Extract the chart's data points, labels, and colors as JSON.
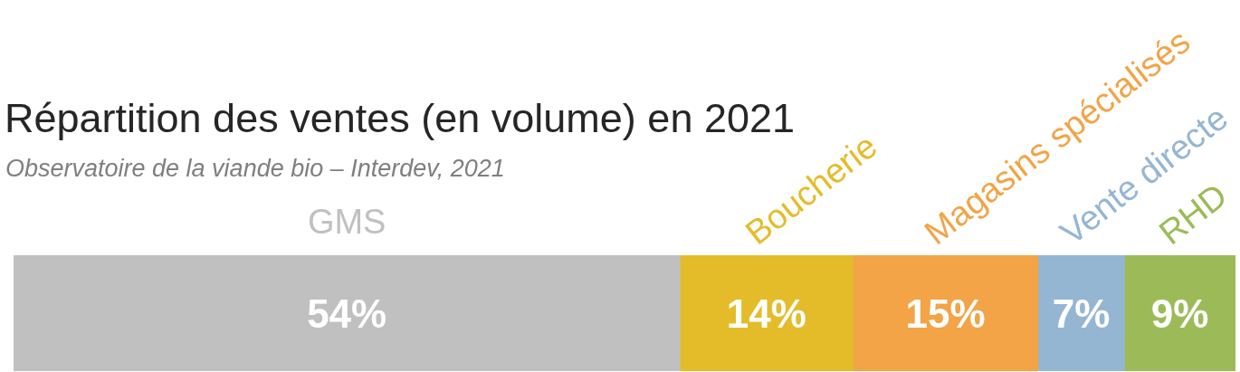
{
  "chart_data": {
    "type": "bar",
    "orientation": "horizontal",
    "stacked": true,
    "title": "Répartition des ventes (en volume) en 2021",
    "subtitle": "Observatoire de la viande bio – Interdev, 2021",
    "categories": [
      null
    ],
    "series": [
      {
        "name": "GMS",
        "color": "#c0c0c0",
        "values": [
          54
        ],
        "value_labels": [
          "54%"
        ]
      },
      {
        "name": "Boucherie",
        "color": "#e4bc2a",
        "values": [
          14
        ],
        "value_labels": [
          "14%"
        ]
      },
      {
        "name": "Magasins spécialisés",
        "color": "#f2a446",
        "values": [
          15
        ],
        "value_labels": [
          "15%"
        ]
      },
      {
        "name": "Vente directe",
        "color": "#95b6d2",
        "values": [
          7
        ],
        "value_labels": [
          "7%"
        ]
      },
      {
        "name": "RHD",
        "color": "#9cbb58",
        "values": [
          9
        ],
        "value_labels": [
          "9%"
        ]
      }
    ],
    "xlim": [
      0,
      99
    ],
    "tick_labels": false,
    "grid": false,
    "legend": false
  }
}
